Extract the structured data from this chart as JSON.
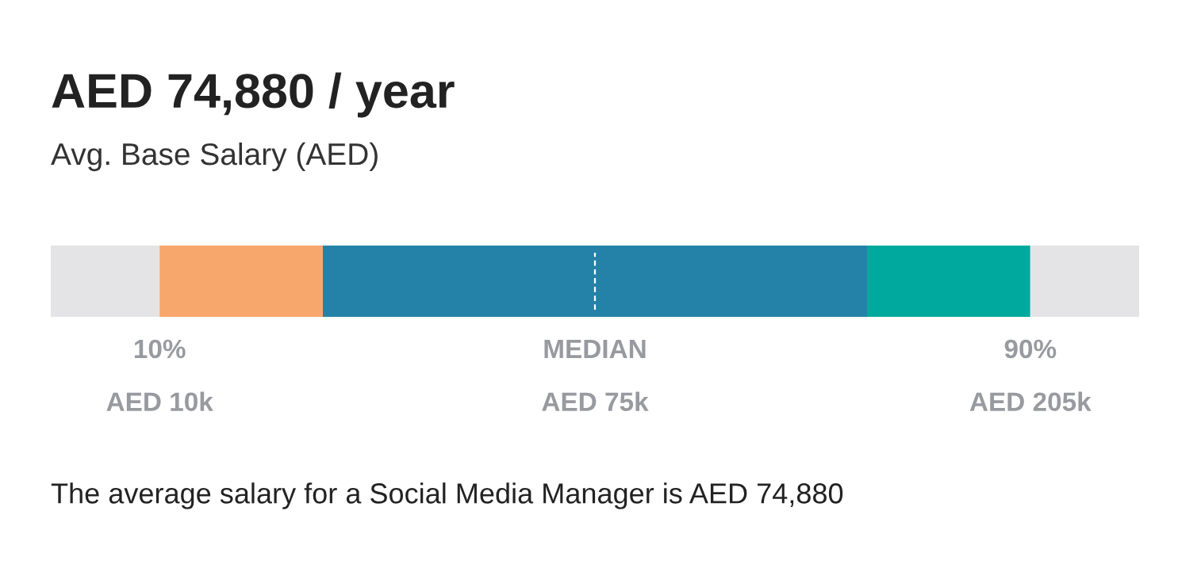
{
  "chart_data": {
    "type": "bar",
    "orientation": "horizontal",
    "stacked": true,
    "title": "AED 74,880 / year",
    "subtitle": "Avg. Base Salary (AED)",
    "categories": [
      null
    ],
    "series": [
      {
        "color": "#e4e4e6",
        "values": [
          10
        ]
      },
      {
        "color": "#f7a76c",
        "values": [
          15
        ]
      },
      {
        "color": "#2482a8",
        "values": [
          50
        ]
      },
      {
        "color": "#00a99d",
        "values": [
          15
        ]
      },
      {
        "color": "#e4e4e6",
        "values": [
          10
        ]
      }
    ],
    "xlim": [
      0,
      100
    ],
    "xticks": [
      {
        "value": 10,
        "label": "10%"
      },
      {
        "value": 50,
        "label": "MEDIAN"
      },
      {
        "value": 90,
        "label": "90%"
      }
    ],
    "ref_lines": [
      {
        "axis": "x",
        "value": 50,
        "color": "#ffffff",
        "line_style": "dashed"
      }
    ],
    "tick_labels": "x",
    "grid": false,
    "legend": false,
    "annotations": [
      "AED 10k",
      "AED 75k",
      "AED 205k",
      "The average salary for a Social Media Manager is AED 74,880"
    ]
  }
}
